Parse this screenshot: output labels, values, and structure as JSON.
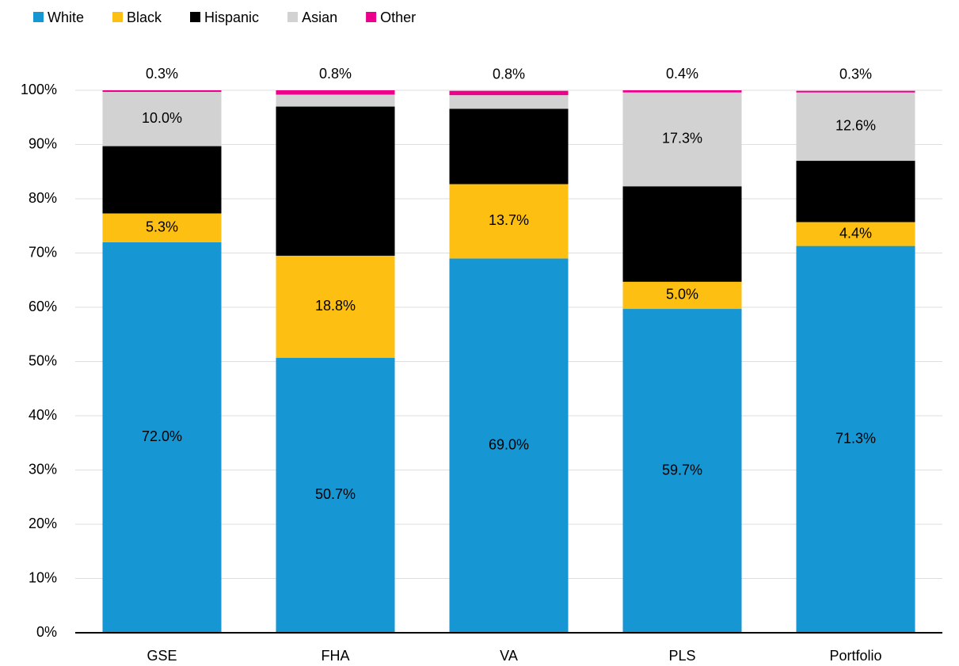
{
  "chart_data": {
    "type": "stacked_bar",
    "categories": [
      "GSE",
      "FHA",
      "VA",
      "PLS",
      "Portfolio"
    ],
    "series": [
      {
        "name": "White",
        "color": "#1696d2",
        "values": [
          72.0,
          50.7,
          69.0,
          59.7,
          71.3
        ],
        "value_labels": [
          "72.0%",
          "50.7%",
          "69.0%",
          "59.7%",
          "71.3%"
        ]
      },
      {
        "name": "Black",
        "color": "#fdbf11",
        "values": [
          5.3,
          18.8,
          13.7,
          5.0,
          4.4
        ],
        "value_labels": [
          "5.3%",
          "18.8%",
          "13.7%",
          "5.0%",
          "4.4%"
        ]
      },
      {
        "name": "Hispanic",
        "color": "#000000",
        "values": [
          12.4,
          27.5,
          13.9,
          17.6,
          11.3
        ],
        "value_labels": [
          "12.4%",
          "27.5%",
          "13.9%",
          "17.6%",
          "11.3%"
        ]
      },
      {
        "name": "Asian",
        "color": "#d2d2d2",
        "values": [
          10.0,
          2.2,
          2.5,
          17.3,
          12.6
        ],
        "value_labels": [
          "10.0%",
          "2.2%",
          "2.5%",
          "17.3%",
          "12.6%"
        ]
      },
      {
        "name": "Other",
        "color": "#ec008b",
        "values": [
          0.3,
          0.8,
          0.8,
          0.4,
          0.3
        ],
        "value_labels": [
          "0.3%",
          "0.8%",
          "0.8%",
          "0.4%",
          "0.3%"
        ]
      }
    ],
    "ylim": [
      0,
      100
    ],
    "yticks": [
      {
        "value": 0,
        "label": "0%"
      },
      {
        "value": 10,
        "label": "10%"
      },
      {
        "value": 20,
        "label": "20%"
      },
      {
        "value": 30,
        "label": "30%"
      },
      {
        "value": 40,
        "label": "40%"
      },
      {
        "value": 50,
        "label": "50%"
      },
      {
        "value": 60,
        "label": "60%"
      },
      {
        "value": 70,
        "label": "70%"
      },
      {
        "value": 80,
        "label": "80%"
      },
      {
        "value": 90,
        "label": "90%"
      },
      {
        "value": 100,
        "label": "100%"
      }
    ],
    "grid": true,
    "legend": "top-left"
  }
}
